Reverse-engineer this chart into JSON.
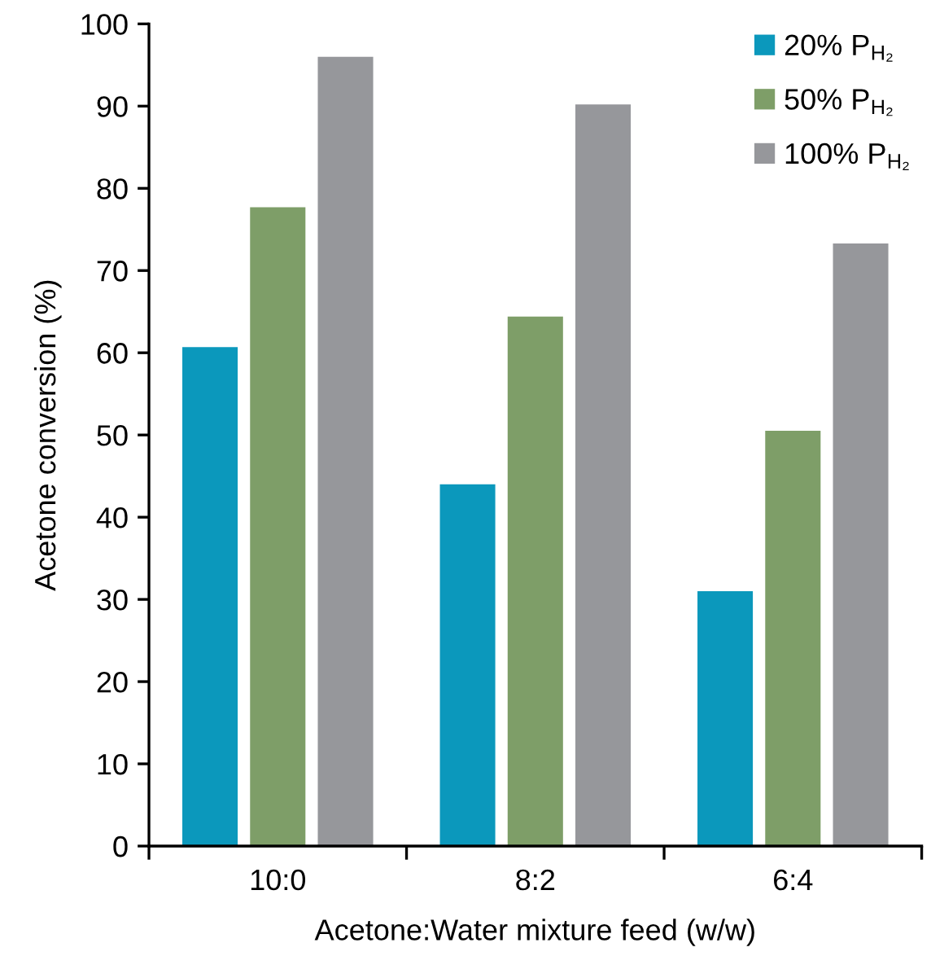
{
  "chart_data": {
    "type": "bar",
    "xlabel": "Acetone:Water mixture feed (w/w)",
    "ylabel": "Acetone conversion (%)",
    "categories": [
      "10:0",
      "8:2",
      "6:4"
    ],
    "series": [
      {
        "name": "20% P$_{H₂}$",
        "color": "#0b98bc",
        "values": [
          60.7,
          44.0,
          31.0
        ]
      },
      {
        "name": "50% P$_{H₂}$",
        "color": "#7e9e68",
        "values": [
          77.7,
          64.4,
          50.5
        ]
      },
      {
        "name": "100% P$_{H₂}$",
        "color": "#96979b",
        "values": [
          96.0,
          90.2,
          73.3
        ]
      }
    ],
    "ylim": [
      0,
      100
    ],
    "yticks": [
      0,
      10,
      20,
      30,
      40,
      50,
      60,
      70,
      80,
      90,
      100
    ],
    "grid": false,
    "legend": "top right"
  }
}
